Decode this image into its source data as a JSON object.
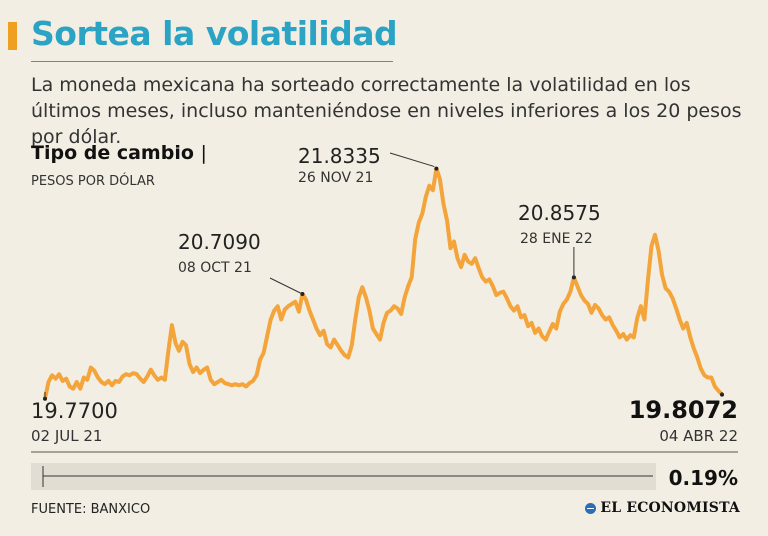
{
  "header": {
    "title": "Sortea la volatilidad",
    "subtitle": "La moneda mexicana ha sorteado correctamente la volatilidad en los últimos meses, incluso manteniéndose en niveles inferiores a los 20 pesos por dólar."
  },
  "chart_data": {
    "type": "line",
    "title": "Tipo de cambio",
    "title_separator": "|",
    "ylabel": "PESOS POR DÓLAR",
    "xlabel": "",
    "x_range": [
      "02 JUL 21",
      "04 ABR 22"
    ],
    "ylim": [
      19.4,
      22.0
    ],
    "color": "#f3a43a",
    "series": [
      {
        "name": "Tipo de cambio",
        "values": [
          19.77,
          19.92,
          19.98,
          19.95,
          19.99,
          19.93,
          19.95,
          19.88,
          19.86,
          19.92,
          19.86,
          19.96,
          19.94,
          20.05,
          20.02,
          19.96,
          19.92,
          19.9,
          19.93,
          19.89,
          19.93,
          19.92,
          19.97,
          19.99,
          19.98,
          20.0,
          19.99,
          19.95,
          19.92,
          19.97,
          20.03,
          19.98,
          19.94,
          19.96,
          19.94,
          20.2,
          20.43,
          20.27,
          20.2,
          20.28,
          20.25,
          20.08,
          20.01,
          20.05,
          20.0,
          20.03,
          20.05,
          19.94,
          19.9,
          19.92,
          19.94,
          19.91,
          19.9,
          19.89,
          19.9,
          19.89,
          19.9,
          19.88,
          19.91,
          19.93,
          19.98,
          20.12,
          20.18,
          20.33,
          20.48,
          20.56,
          20.6,
          20.48,
          20.57,
          20.6,
          20.62,
          20.64,
          20.55,
          20.709,
          20.66,
          20.56,
          20.48,
          20.4,
          20.34,
          20.38,
          20.26,
          20.23,
          20.3,
          20.25,
          20.2,
          20.16,
          20.14,
          20.25,
          20.48,
          20.68,
          20.77,
          20.68,
          20.56,
          20.4,
          20.35,
          20.3,
          20.45,
          20.54,
          20.56,
          20.6,
          20.58,
          20.53,
          20.68,
          20.78,
          20.86,
          21.2,
          21.35,
          21.43,
          21.58,
          21.68,
          21.64,
          21.8335,
          21.74,
          21.52,
          21.37,
          21.12,
          21.18,
          21.03,
          20.95,
          21.06,
          21.0,
          20.98,
          21.03,
          20.94,
          20.86,
          20.82,
          20.84,
          20.78,
          20.7,
          20.72,
          20.73,
          20.67,
          20.6,
          20.56,
          20.6,
          20.5,
          20.52,
          20.42,
          20.45,
          20.36,
          20.4,
          20.33,
          20.3,
          20.37,
          20.44,
          20.4,
          20.55,
          20.62,
          20.66,
          20.73,
          20.8575,
          20.78,
          20.7,
          20.65,
          20.62,
          20.54,
          20.61,
          20.58,
          20.52,
          20.48,
          20.5,
          20.43,
          20.38,
          20.32,
          20.35,
          20.3,
          20.34,
          20.32,
          20.5,
          20.6,
          20.48,
          20.84,
          21.14,
          21.24,
          21.1,
          20.88,
          20.76,
          20.73,
          20.67,
          20.58,
          20.48,
          20.4,
          20.45,
          20.32,
          20.22,
          20.14,
          20.04,
          19.98,
          19.96,
          19.96,
          19.88,
          19.84,
          19.8072
        ]
      }
    ],
    "annotations": [
      {
        "value": "21.8335",
        "date": "26 NOV 21"
      },
      {
        "value": "20.7090",
        "date": "08 OCT 21"
      },
      {
        "value": "20.8575",
        "date": "28 ENE 22"
      }
    ],
    "start": {
      "value": "19.7700",
      "date": "02 JUL 21"
    },
    "end": {
      "value": "19.8072",
      "date": "04 ABR 22"
    },
    "change_pct": "0.19%"
  },
  "footer": {
    "source": "FUENTE: BANXICO",
    "brand": "EL ECONOMISTA"
  }
}
